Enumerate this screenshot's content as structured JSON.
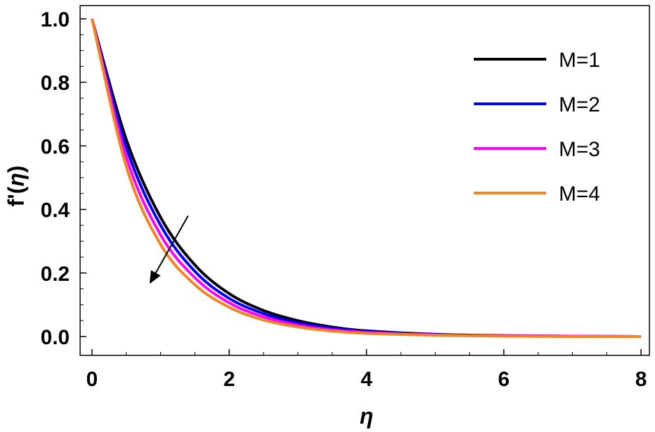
{
  "chart_data": {
    "type": "line",
    "xlabel": "η",
    "ylabel_main": "f'(",
    "ylabel_var": "η",
    "ylabel_close": ")",
    "xlim": [
      0,
      8
    ],
    "ylim": [
      -0.05,
      1.05
    ],
    "xticks": [
      0,
      2,
      4,
      6,
      8
    ],
    "yticks": [
      0.0,
      0.2,
      0.4,
      0.6,
      0.8,
      1.0
    ],
    "xtick_labels": [
      "0",
      "2",
      "4",
      "6",
      "8"
    ],
    "ytick_labels": [
      "0.0",
      "0.2",
      "0.4",
      "0.6",
      "0.8",
      "1.0"
    ],
    "legend_placement": "top-right",
    "grid": false,
    "x": [
      0,
      0.5,
      1,
      1.5,
      2,
      2.5,
      3,
      3.5,
      4,
      5,
      6,
      7,
      8
    ],
    "series": [
      {
        "name": "M=1",
        "color": "#000000",
        "values": [
          1.0,
          0.62,
          0.375,
          0.225,
          0.135,
          0.082,
          0.05,
          0.03,
          0.018,
          0.007,
          0.003,
          0.001,
          0.0
        ]
      },
      {
        "name": "M=2",
        "color": "#0000ff",
        "values": [
          1.0,
          0.595,
          0.35,
          0.205,
          0.12,
          0.072,
          0.043,
          0.026,
          0.016,
          0.006,
          0.002,
          0.001,
          0.0
        ]
      },
      {
        "name": "M=3",
        "color": "#ff00ff",
        "values": [
          1.0,
          0.565,
          0.32,
          0.185,
          0.106,
          0.062,
          0.036,
          0.021,
          0.013,
          0.005,
          0.002,
          0.001,
          0.0
        ]
      },
      {
        "name": "M=4",
        "color": "#f28522",
        "values": [
          1.0,
          0.535,
          0.29,
          0.163,
          0.092,
          0.052,
          0.03,
          0.017,
          0.01,
          0.004,
          0.001,
          0.0,
          0.0
        ]
      }
    ],
    "annotation": {
      "type": "arrow",
      "from": [
        1.4,
        0.38
      ],
      "to": [
        0.85,
        0.17
      ],
      "meaning": "increasing M"
    }
  }
}
